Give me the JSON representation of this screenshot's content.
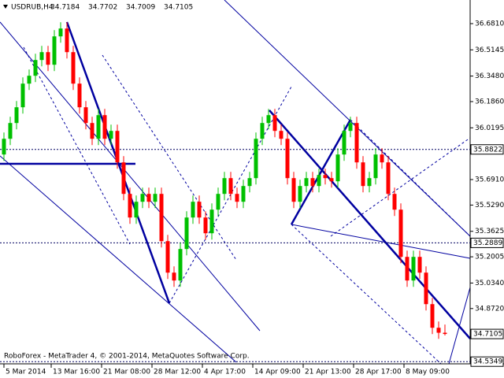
{
  "chart_data": {
    "type": "candlestick",
    "title": "USDRUB,H4",
    "footer": "RoboForex - MetaTrader 4, © 2001-2014, MetaQuotes Software Corp.",
    "up_color": "#00c000",
    "down_color": "#ff0000",
    "open": [
      35.85,
      35.95,
      36.05,
      36.15,
      36.3,
      36.35,
      36.45,
      36.5,
      36.42,
      36.6,
      36.65,
      36.5,
      36.3,
      36.15,
      36.05,
      35.95,
      36.1,
      35.95,
      36.0,
      35.8,
      35.6,
      35.45,
      35.55,
      35.6,
      35.55,
      35.6,
      35.3,
      35.1,
      35.05,
      35.25,
      35.45,
      35.55,
      35.45,
      35.35,
      35.5,
      35.6,
      35.7,
      35.6,
      35.55,
      35.65,
      35.7,
      35.95,
      36.05,
      36.1,
      36.0,
      35.95,
      35.7,
      35.55,
      35.65,
      35.7,
      35.65,
      35.72,
      35.7,
      35.68,
      35.85,
      36.0,
      36.05,
      35.8,
      35.65,
      35.7,
      35.85,
      35.8,
      35.6,
      35.5,
      35.2,
      35.05,
      35.2,
      35.1,
      34.9,
      34.75,
      34.7184
    ],
    "high": [
      35.99,
      36.09,
      36.19,
      36.34,
      36.39,
      36.49,
      36.54,
      36.54,
      36.64,
      36.69,
      36.69,
      36.54,
      36.34,
      36.19,
      36.09,
      36.14,
      36.14,
      36.04,
      36.04,
      35.84,
      35.64,
      35.59,
      35.64,
      35.64,
      35.64,
      35.64,
      35.34,
      35.14,
      35.29,
      35.49,
      35.59,
      35.59,
      35.49,
      35.54,
      35.64,
      35.74,
      35.74,
      35.64,
      35.69,
      35.74,
      35.99,
      36.09,
      36.14,
      36.14,
      36.04,
      35.99,
      35.74,
      35.69,
      35.74,
      35.74,
      35.76,
      35.76,
      35.74,
      35.89,
      36.04,
      36.09,
      36.09,
      35.84,
      35.74,
      35.89,
      35.89,
      35.84,
      35.64,
      35.54,
      35.24,
      35.24,
      35.24,
      35.14,
      34.94,
      34.79,
      34.7702
    ],
    "low": [
      35.81,
      35.91,
      36.01,
      36.11,
      36.26,
      36.31,
      36.41,
      36.38,
      36.38,
      36.56,
      36.46,
      36.26,
      36.11,
      36.01,
      35.91,
      35.91,
      35.91,
      35.91,
      35.76,
      35.56,
      35.41,
      35.41,
      35.51,
      35.51,
      35.51,
      35.26,
      35.06,
      35.01,
      35.01,
      35.21,
      35.41,
      35.41,
      35.31,
      35.31,
      35.46,
      35.56,
      35.56,
      35.51,
      35.51,
      35.61,
      35.66,
      35.91,
      36.01,
      35.96,
      35.91,
      35.66,
      35.51,
      35.51,
      35.61,
      35.61,
      35.61,
      35.66,
      35.64,
      35.64,
      35.81,
      35.96,
      35.76,
      35.61,
      35.61,
      35.66,
      35.76,
      35.56,
      35.46,
      35.16,
      35.01,
      35.01,
      35.06,
      34.86,
      34.71,
      34.68,
      34.7009
    ],
    "close": [
      35.95,
      36.05,
      36.15,
      36.3,
      36.35,
      36.45,
      36.5,
      36.42,
      36.6,
      36.65,
      36.5,
      36.3,
      36.15,
      36.05,
      35.95,
      36.1,
      35.95,
      36.0,
      35.8,
      35.6,
      35.45,
      35.55,
      35.6,
      35.55,
      35.6,
      35.3,
      35.1,
      35.05,
      35.25,
      35.45,
      35.55,
      35.45,
      35.35,
      35.5,
      35.6,
      35.7,
      35.6,
      35.55,
      35.65,
      35.7,
      35.95,
      36.05,
      36.1,
      36.0,
      35.95,
      35.7,
      35.55,
      35.65,
      35.7,
      35.65,
      35.72,
      35.7,
      35.68,
      35.85,
      36.0,
      36.05,
      35.8,
      35.65,
      35.7,
      35.85,
      35.8,
      35.6,
      35.5,
      35.2,
      35.05,
      35.2,
      35.1,
      34.9,
      34.75,
      34.7184,
      34.7105
    ],
    "xlim": [
      -0.625,
      74
    ],
    "xticks": [
      {
        "value": 0,
        "label": "5 Mar 2014"
      },
      {
        "value": 7.5,
        "label": "13 Mar 16:00"
      },
      {
        "value": 15.5,
        "label": "21 Mar 08:00"
      },
      {
        "value": 23.5,
        "label": "28 Mar 12:00"
      },
      {
        "value": 31.5,
        "label": "4 Apr 17:00"
      },
      {
        "value": 39.5,
        "label": "14 Apr 09:00"
      },
      {
        "value": 47.5,
        "label": "21 Apr 13:00"
      },
      {
        "value": 55.5,
        "label": "28 Apr 17:00"
      },
      {
        "value": 63.5,
        "label": "8 May 09:00"
      }
    ],
    "ylim": [
      34.521,
      36.831
    ],
    "yticks": [
      {
        "value": 36.681,
        "label": "36.6810"
      },
      36.5145,
      {
        "value": 36.348,
        "label": "36.3480"
      },
      {
        "value": 36.186,
        "label": "36.1860"
      },
      36.0195,
      {
        "value": 35.691,
        "label": "35.6910"
      },
      {
        "value": 35.529,
        "label": "35.5290"
      },
      35.3625,
      35.2005,
      {
        "value": 35.034,
        "label": "35.0340"
      },
      {
        "value": 34.872,
        "label": "34.8720"
      }
    ],
    "levels": [
      35.8822,
      35.2889,
      34.5349
    ]
  }
}
